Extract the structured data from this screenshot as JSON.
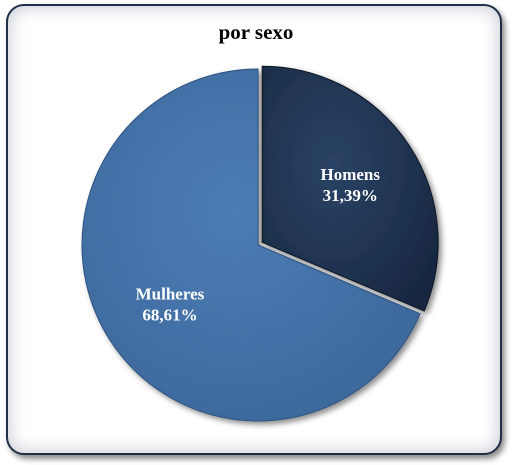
{
  "chart_data": {
    "type": "pie",
    "title": "por sexo",
    "categories": [
      "Homens",
      "Mulheres"
    ],
    "values": [
      31.39,
      68.61
    ],
    "value_labels": [
      "31,39%",
      "68,61%"
    ],
    "colors": [
      "#1f3352",
      "#4472a8"
    ],
    "exploded": "Homens",
    "legend": "none"
  }
}
